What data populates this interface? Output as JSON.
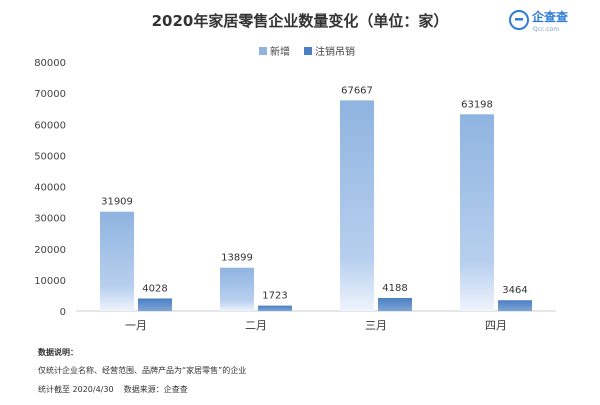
{
  "chart_data": {
    "type": "bar",
    "title": "2020年家居零售企业数量变化（单位：家）",
    "categories": [
      "一月",
      "二月",
      "三月",
      "四月"
    ],
    "series": [
      {
        "name": "新增",
        "values": [
          31909,
          13899,
          67667,
          63198
        ],
        "color": "#8fb4e0"
      },
      {
        "name": "注销吊销",
        "values": [
          4028,
          1723,
          4188,
          3464
        ],
        "color": "#4a7fc3"
      }
    ],
    "ylim": [
      0,
      80000
    ],
    "yticks": [
      "0",
      "10000",
      "20000",
      "30000",
      "40000",
      "50000",
      "60000",
      "70000",
      "80000"
    ],
    "grid": false,
    "legend": "top-center"
  },
  "notes": {
    "heading": "数据说明：",
    "line1": "仅统计企业名称、经营范围、品牌产品为“家居零售”的企业",
    "line2": "统计截至 2020/4/30    数据来源：企查查"
  },
  "logo": {
    "name": "企查查",
    "sub": "Qcc.com"
  }
}
